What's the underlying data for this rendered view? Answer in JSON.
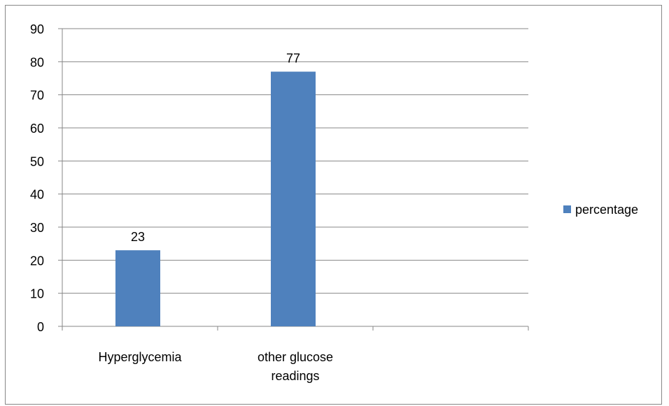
{
  "chart_data": {
    "type": "bar",
    "categories": [
      "Hyperglycemia",
      "other glucose readings",
      ""
    ],
    "category_lines": [
      [
        "Hyperglycemia"
      ],
      [
        "other glucose",
        "readings"
      ],
      []
    ],
    "series": [
      {
        "name": "percentage",
        "values": [
          23,
          77,
          null
        ]
      }
    ],
    "data_labels": [
      "23",
      "77",
      ""
    ],
    "yticks": [
      "0",
      "10",
      "20",
      "30",
      "40",
      "50",
      "60",
      "70",
      "80",
      "90"
    ],
    "ylim": [
      0,
      90
    ],
    "title": "",
    "xlabel": "",
    "ylabel": "",
    "grid": true,
    "legend_position": "right",
    "colors": {
      "bar": "#4F81BD",
      "grid": "#878787",
      "axis": "#878787",
      "frame": "#878787"
    }
  }
}
